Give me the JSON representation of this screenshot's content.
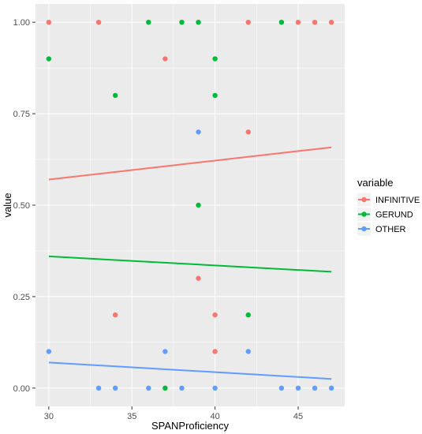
{
  "chart_data": {
    "type": "scatter",
    "xlabel": "SPANProficiency",
    "ylabel": "value",
    "xlim": [
      29.2,
      47.8
    ],
    "ylim": [
      -0.05,
      1.05
    ],
    "x_ticks": [
      30,
      35,
      40,
      45
    ],
    "y_ticks": [
      0.0,
      0.25,
      0.5,
      0.75,
      1.0
    ],
    "y_tick_labels": [
      "0.00",
      "0.25",
      "0.50",
      "0.75",
      "1.00"
    ],
    "grid": true,
    "legend": {
      "title": "variable",
      "position": "right"
    },
    "series": [
      {
        "name": "INFINITIVE",
        "color": "#F8766D",
        "points": [
          [
            30,
            1.0
          ],
          [
            33,
            1.0
          ],
          [
            37,
            0.9
          ],
          [
            42,
            1.0
          ],
          [
            45,
            1.0
          ],
          [
            46,
            1.0
          ],
          [
            47,
            1.0
          ],
          [
            42,
            0.7
          ],
          [
            39,
            0.3
          ],
          [
            34,
            0.2
          ],
          [
            40,
            0.2
          ],
          [
            40,
            0.1
          ]
        ],
        "trend": [
          [
            30,
            0.57
          ],
          [
            47,
            0.658
          ]
        ]
      },
      {
        "name": "GERUND",
        "color": "#00BA38",
        "points": [
          [
            30,
            0.9
          ],
          [
            36,
            1.0
          ],
          [
            38,
            1.0
          ],
          [
            39,
            1.0
          ],
          [
            44,
            1.0
          ],
          [
            40,
            0.9
          ],
          [
            34,
            0.8
          ],
          [
            40,
            0.8
          ],
          [
            39,
            0.5
          ],
          [
            42,
            0.2
          ],
          [
            37,
            0.0
          ]
        ],
        "trend": [
          [
            30,
            0.36
          ],
          [
            47,
            0.318
          ]
        ]
      },
      {
        "name": "OTHER",
        "color": "#619CFF",
        "points": [
          [
            39,
            0.7
          ],
          [
            30,
            0.1
          ],
          [
            37,
            0.1
          ],
          [
            42,
            0.1
          ],
          [
            33,
            0.0
          ],
          [
            34,
            0.0
          ],
          [
            36,
            0.0
          ],
          [
            38,
            0.0
          ],
          [
            40,
            0.0
          ],
          [
            44,
            0.0
          ],
          [
            45,
            0.0
          ],
          [
            46,
            0.0
          ],
          [
            47,
            0.0
          ]
        ],
        "trend": [
          [
            30,
            0.07
          ],
          [
            47,
            0.025
          ]
        ]
      }
    ]
  }
}
